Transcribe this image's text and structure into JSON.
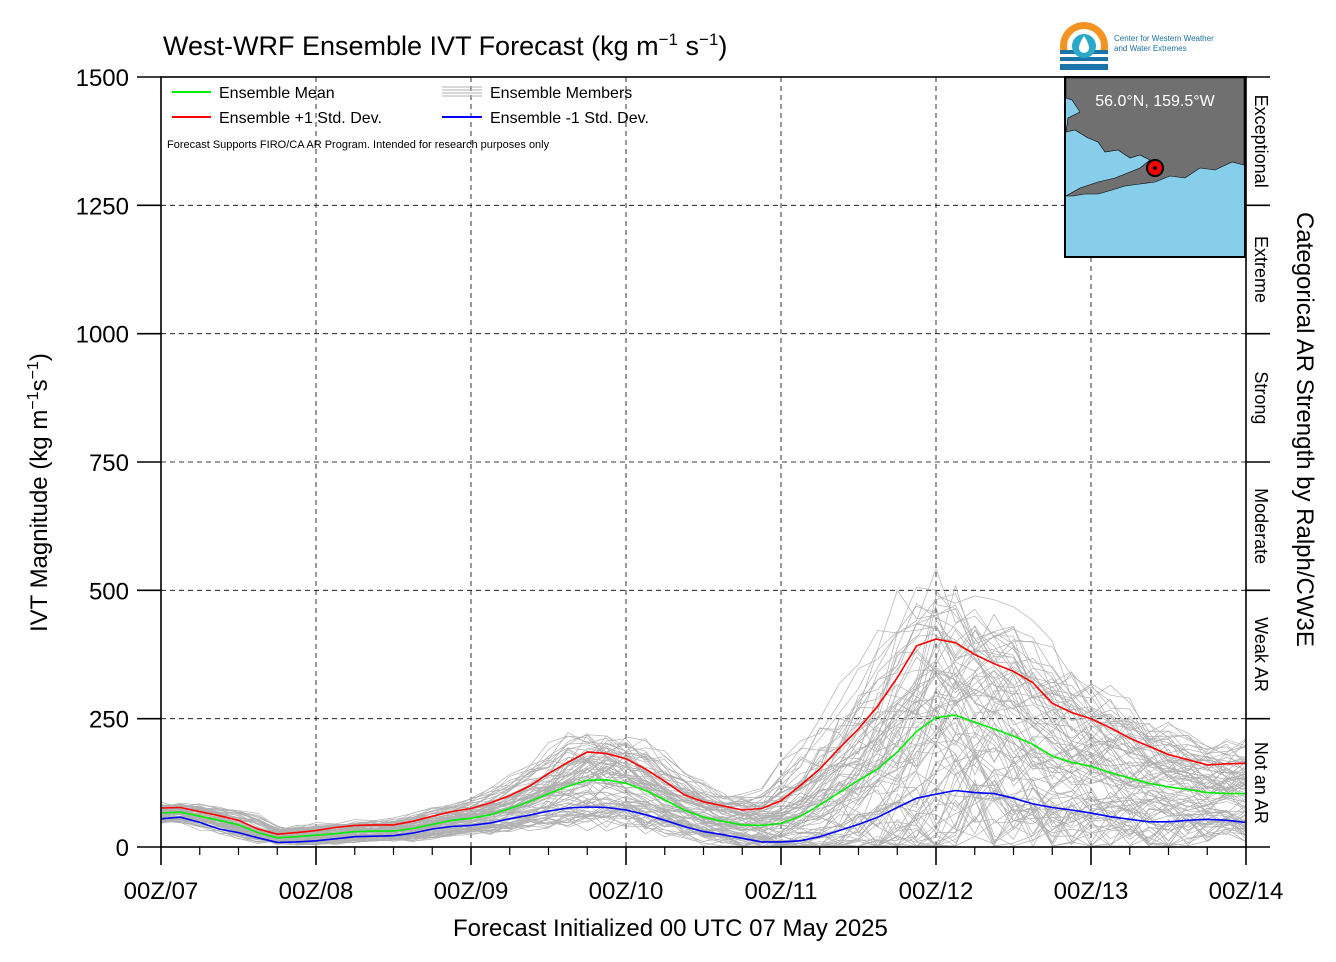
{
  "header": {
    "title_main": "West-WRF Ensemble IVT Forecast (kg m",
    "title_sup1": "−1",
    "title_mid": " s",
    "title_sup2": "−1",
    "title_end": ")"
  },
  "logo": {
    "line1": "Center for Western Weather",
    "line2": "and Water Extremes",
    "colors": {
      "orange": "#f39322",
      "blue": "#1b75a8",
      "teal": "#2aa8c9"
    }
  },
  "notice": "Forecast Supports FIRO/CA AR Program. Intended for research purposes only",
  "inset_map": {
    "label": "56.0°N, 159.5°W",
    "ocean_color": "#87ceeb",
    "land_color": "#707070",
    "marker_color": "#ff0000"
  },
  "colors": {
    "mean": "#00ee00",
    "plus1": "#ff0000",
    "minus1": "#0000ff",
    "members": "#b0b0b0",
    "grid": "#000000"
  },
  "chart_data": {
    "type": "line",
    "title": "West-WRF Ensemble IVT Forecast (kg m−1 s−1)",
    "xlabel": "Forecast Initialized 00 UTC 07 May 2025",
    "ylabel_parts": {
      "pre": "IVT Magnitude (kg m",
      "sup1": "−1",
      "mid": "s",
      "sup2": "−1",
      "end": ")"
    },
    "y2label": "Categorical AR Strength by Ralph/CW3E",
    "xlim": [
      0,
      168
    ],
    "ylim": [
      0,
      1500
    ],
    "yticks": [
      0,
      250,
      500,
      750,
      1000,
      1250,
      1500
    ],
    "xticks": [
      {
        "hour": 0,
        "label": "00Z/07"
      },
      {
        "hour": 24,
        "label": "00Z/08"
      },
      {
        "hour": 48,
        "label": "00Z/09"
      },
      {
        "hour": 72,
        "label": "00Z/10"
      },
      {
        "hour": 96,
        "label": "00Z/11"
      },
      {
        "hour": 120,
        "label": "00Z/12"
      },
      {
        "hour": 144,
        "label": "00Z/13"
      },
      {
        "hour": 168,
        "label": "00Z/14"
      }
    ],
    "grid": true,
    "legend_position": "top-left",
    "categories_right": [
      {
        "label": "Not an AR",
        "range": [
          0,
          250
        ]
      },
      {
        "label": "Weak AR",
        "range": [
          250,
          500
        ]
      },
      {
        "label": "Moderate",
        "range": [
          500,
          750
        ]
      },
      {
        "label": "Strong",
        "range": [
          750,
          1000
        ]
      },
      {
        "label": "Extreme",
        "range": [
          1000,
          1250
        ]
      },
      {
        "label": "Exceptional",
        "range": [
          1250,
          1500
        ]
      }
    ],
    "x": [
      0,
      3,
      6,
      9,
      12,
      15,
      18,
      21,
      24,
      27,
      30,
      33,
      36,
      39,
      42,
      45,
      48,
      51,
      54,
      57,
      60,
      63,
      66,
      69,
      72,
      75,
      78,
      81,
      84,
      87,
      90,
      93,
      96,
      99,
      102,
      105,
      108,
      111,
      114,
      117,
      120,
      123,
      126,
      129,
      132,
      135,
      138,
      141,
      144,
      147,
      150,
      153,
      156,
      159,
      162,
      165,
      168
    ],
    "series": [
      {
        "name": "Ensemble Mean",
        "key": "mean",
        "values": [
          66,
          68,
          60,
          52,
          43,
          28,
          18,
          20,
          23,
          26,
          30,
          31,
          31,
          36,
          44,
          52,
          56,
          63,
          75,
          88,
          104,
          118,
          130,
          131,
          124,
          110,
          92,
          72,
          58,
          50,
          43,
          42,
          46,
          60,
          82,
          106,
          130,
          152,
          185,
          225,
          252,
          257,
          243,
          230,
          216,
          200,
          177,
          165,
          157,
          145,
          134,
          124,
          117,
          112,
          106,
          104,
          104
        ]
      },
      {
        "name": "Ensemble +1 Std. Dev.",
        "key": "plus1",
        "values": [
          76,
          77,
          69,
          61,
          52,
          35,
          25,
          28,
          32,
          38,
          42,
          43,
          43,
          50,
          60,
          69,
          75,
          86,
          100,
          118,
          143,
          165,
          185,
          182,
          172,
          152,
          128,
          102,
          88,
          80,
          72,
          75,
          90,
          120,
          152,
          192,
          230,
          275,
          330,
          392,
          405,
          398,
          375,
          357,
          342,
          320,
          280,
          262,
          250,
          232,
          212,
          196,
          180,
          170,
          160,
          162,
          163
        ]
      },
      {
        "name": "Ensemble -1 Std. Dev.",
        "key": "minus1",
        "values": [
          55,
          58,
          48,
          35,
          28,
          18,
          9,
          10,
          12,
          16,
          20,
          21,
          22,
          27,
          35,
          40,
          42,
          47,
          55,
          62,
          70,
          76,
          78,
          77,
          72,
          63,
          52,
          40,
          30,
          24,
          17,
          10,
          10,
          12,
          20,
          32,
          44,
          58,
          77,
          95,
          103,
          110,
          106,
          104,
          95,
          84,
          77,
          72,
          66,
          59,
          54,
          49,
          49,
          52,
          54,
          52,
          48
        ]
      }
    ],
    "members_label": "Ensemble Members"
  }
}
